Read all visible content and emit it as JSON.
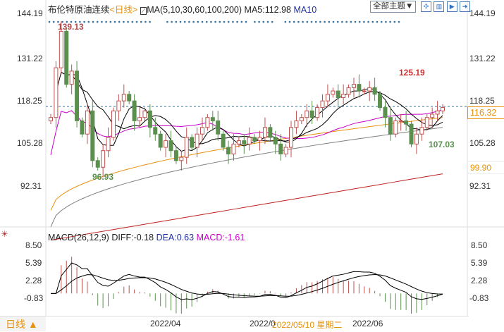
{
  "header": {
    "instrument": "布伦特原油连续",
    "period": "<日线>",
    "ma_label": "MA(5,10,30,60,100,200)",
    "ma5": "MA5:112.98",
    "ma10": "MA10",
    "theme_button": "全部主题▼"
  },
  "toolbar_icons": [
    "crosshair-icon",
    "split-icon",
    "play-icon",
    "exit-icon"
  ],
  "price_axis": {
    "ticks": [
      "144.19",
      "131.22",
      "118.25",
      "105.28",
      "92.31"
    ],
    "current": "116.32",
    "ma_value": "99.90"
  },
  "annotations": {
    "high": "139.13",
    "high2": "125.19",
    "low": "96.93",
    "low2": "107.03"
  },
  "macd": {
    "label": "MACD(26,12,9)",
    "diff": "DIFF:-0.18",
    "dea": "DEA:0.63",
    "macd": "MACD:-1.61",
    "ticks": [
      "8.50",
      "5.39",
      "2.28",
      "-0.83"
    ]
  },
  "footer": {
    "period_button": "日线 ▲",
    "dates": [
      "2022/04",
      "2022/0",
      "2022/06"
    ],
    "cursor_date": "2022/05/10 星期二"
  },
  "colors": {
    "up": "#c0504d",
    "down": "#5a8f4e",
    "ma5": "#000000",
    "ma10": "#000000",
    "ma30": "#c800c8",
    "ma60": "#e8900a",
    "ma100": "#808080",
    "ma200": "#c02020"
  },
  "chart_data": {
    "type": "candlestick",
    "closes": [
      113,
      128,
      139,
      123,
      127,
      112,
      108,
      115,
      100,
      98,
      103,
      107,
      115,
      118,
      120,
      118,
      112,
      113,
      115,
      110,
      108,
      104,
      106,
      103,
      100,
      101,
      107,
      104,
      108,
      110,
      113,
      112,
      108,
      104,
      102,
      105,
      106,
      105,
      107,
      106,
      107,
      110,
      107,
      105,
      102,
      104,
      110,
      112,
      113,
      115,
      113,
      116,
      118,
      120,
      121,
      119,
      120,
      122,
      123,
      121,
      121,
      122,
      120,
      116,
      113,
      108,
      112,
      112,
      111,
      105,
      108,
      110,
      113,
      114,
      115,
      116
    ],
    "ma60": [
      85,
      113
    ],
    "ma100": [
      80,
      110
    ],
    "ma200": [
      76,
      96
    ],
    "ylim": [
      92.31,
      144.19
    ],
    "macd_ylim": [
      -0.83,
      8.5
    ]
  }
}
